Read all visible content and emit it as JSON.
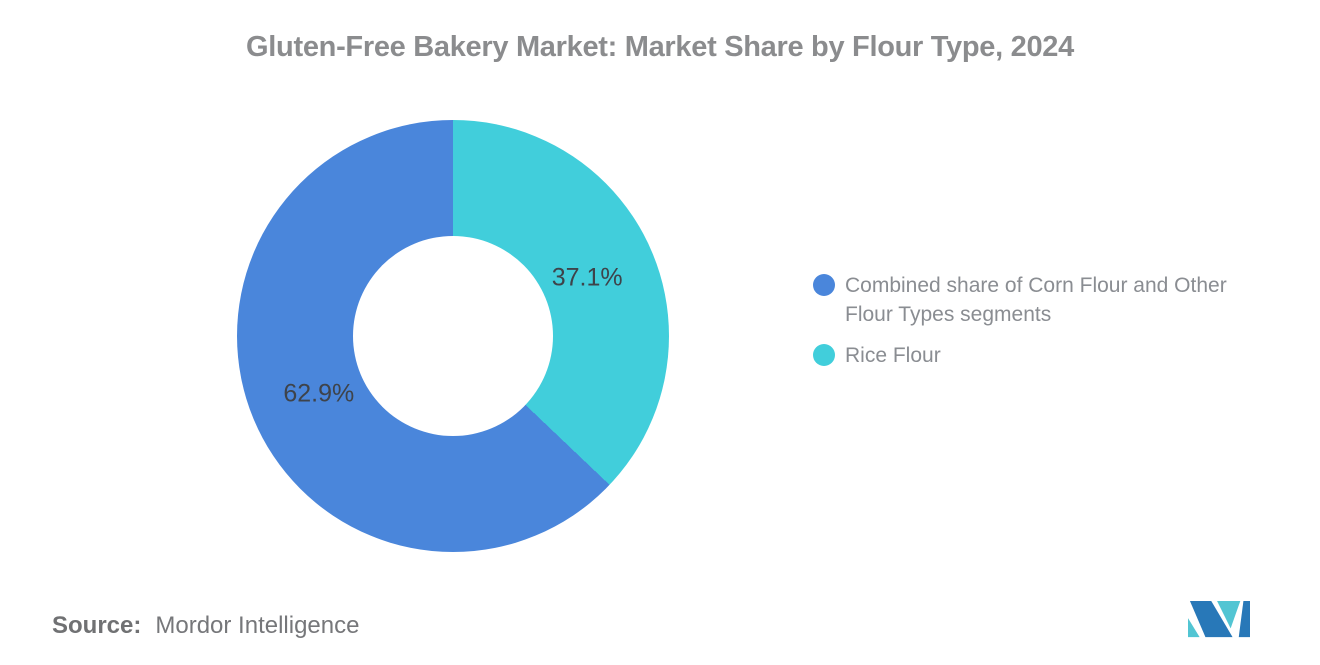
{
  "title": "Gluten-Free Bakery Market: Market Share by Flour Type, 2024",
  "chart_data": {
    "type": "pie",
    "subtype": "donut",
    "title": "Gluten-Free Bakery Market: Market Share by Flour Type, 2024",
    "unit": "%",
    "start_angle": "12-o-clock, first slice clockwise",
    "slices": [
      {
        "name": "Rice Flour",
        "value": 37.1,
        "label": "37.1%",
        "color": "#41CEDB"
      },
      {
        "name": "Combined share of Corn Flour and Other Flour Types segments",
        "value": 62.9,
        "label": "62.9%",
        "color": "#4A86DB"
      }
    ],
    "legend": {
      "position": "right",
      "items": [
        {
          "label": "Combined share of Corn Flour and Other Flour Types segments",
          "color": "#4A86DB"
        },
        {
          "label": "Rice Flour",
          "color": "#41CEDB"
        }
      ]
    },
    "data_label_color": "#3E434A"
  },
  "source": {
    "prefix": "Source:",
    "name": "Mordor Intelligence"
  },
  "logo": {
    "label": "mordor-intelligence-logo",
    "blue": "#2878B8",
    "teal": "#52C5D3"
  }
}
